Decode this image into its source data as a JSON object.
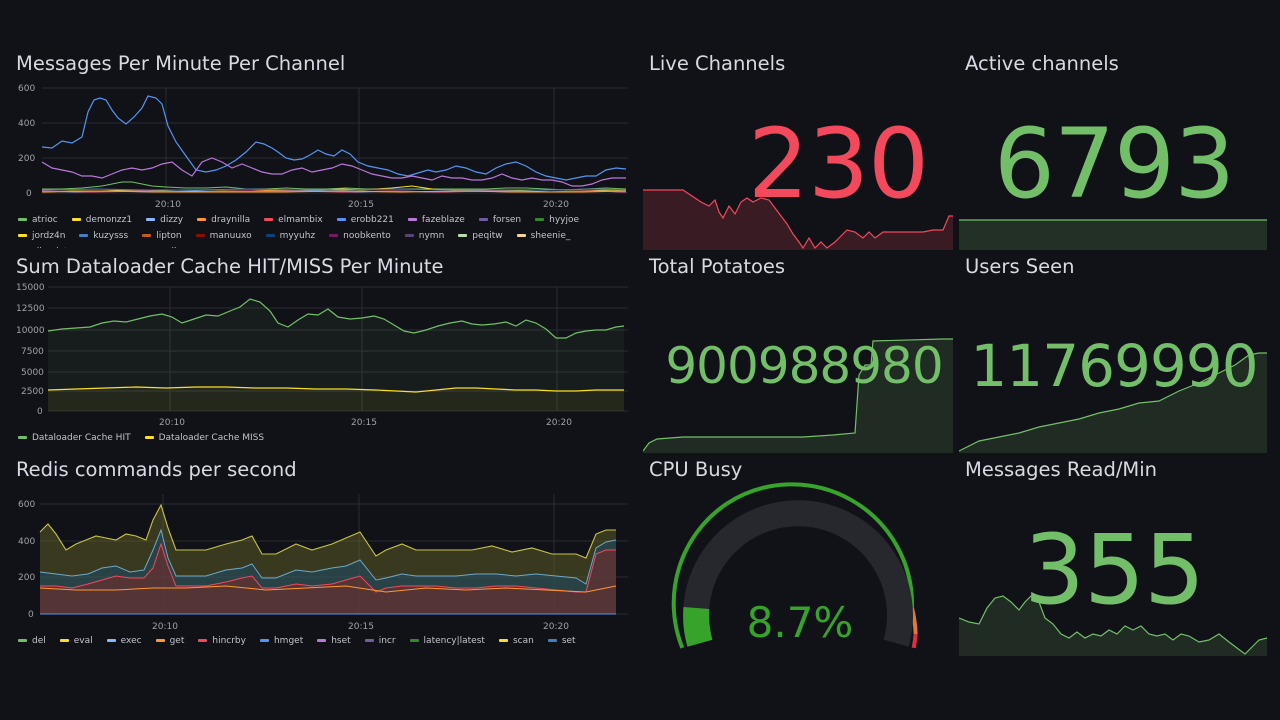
{
  "colors": {
    "background": "#111217",
    "green": "#73bf69",
    "red": "#f2495c",
    "gauge_green": "#37a32b",
    "gauge_orange": "#e07a2a",
    "gauge_red": "#e02f44"
  },
  "messages_panel": {
    "title": "Messages Per Minute Per Channel",
    "yticks": [
      "600",
      "400",
      "200",
      "0"
    ],
    "xticks": [
      "20:10",
      "20:15",
      "20:20"
    ],
    "legend": [
      {
        "name": "atrioc",
        "color": "#73bf69"
      },
      {
        "name": "demonzz1",
        "color": "#fade2a"
      },
      {
        "name": "dizzy",
        "color": "#8ab8ff"
      },
      {
        "name": "draynilla",
        "color": "#ff9830"
      },
      {
        "name": "elmambix",
        "color": "#f2495c"
      },
      {
        "name": "erobb221",
        "color": "#5794f2"
      },
      {
        "name": "fazeblaze",
        "color": "#b877d9"
      },
      {
        "name": "forsen",
        "color": "#705da0"
      },
      {
        "name": "hyyjoe",
        "color": "#37872d"
      },
      {
        "name": "jordz4n",
        "color": "#fade2a"
      },
      {
        "name": "kuzysss",
        "color": "#447ebc"
      },
      {
        "name": "lipton",
        "color": "#c15c17"
      },
      {
        "name": "manuuxo",
        "color": "#890f02"
      },
      {
        "name": "myyuhz",
        "color": "#0a437c"
      },
      {
        "name": "noobkento",
        "color": "#6d1f62"
      },
      {
        "name": "nymn",
        "color": "#584477"
      },
      {
        "name": "peqitw",
        "color": "#b7dbab"
      },
      {
        "name": "sheenie_",
        "color": "#f4d598"
      },
      {
        "name": "slimplyty",
        "color": "#70dbed"
      },
      {
        "name": "sunnys",
        "color": "#f9ba8f"
      },
      {
        "name": "valkyrae",
        "color": "#f29191"
      },
      {
        "name": "vonza",
        "color": "#82b5d8"
      },
      {
        "name": "xqc",
        "color": "#e5a8e2"
      }
    ]
  },
  "cache_panel": {
    "title": "Sum Dataloader Cache HIT/MISS Per Minute",
    "yticks": [
      "15000",
      "12500",
      "10000",
      "7500",
      "5000",
      "2500",
      "0"
    ],
    "xticks": [
      "20:10",
      "20:15",
      "20:20"
    ],
    "legend": [
      {
        "name": "Dataloader Cache HIT",
        "color": "#73bf69"
      },
      {
        "name": "Dataloader Cache MISS",
        "color": "#fade2a"
      }
    ]
  },
  "redis_panel": {
    "title": "Redis commands per second",
    "yticks": [
      "600",
      "400",
      "200",
      "0"
    ],
    "xticks": [
      "20:10",
      "20:15",
      "20:20"
    ],
    "legend": [
      {
        "name": "del",
        "color": "#73bf69"
      },
      {
        "name": "eval",
        "color": "#fade2a"
      },
      {
        "name": "exec",
        "color": "#8ab8ff"
      },
      {
        "name": "get",
        "color": "#ff9830"
      },
      {
        "name": "hincrby",
        "color": "#f2495c"
      },
      {
        "name": "hmget",
        "color": "#5794f2"
      },
      {
        "name": "hset",
        "color": "#b877d9"
      },
      {
        "name": "incr",
        "color": "#705da0"
      },
      {
        "name": "latency|latest",
        "color": "#37872d"
      },
      {
        "name": "scan",
        "color": "#fade2a"
      },
      {
        "name": "set",
        "color": "#447ebc"
      }
    ]
  },
  "live_channels": {
    "title": "Live Channels",
    "value": "230"
  },
  "active_channels": {
    "title": "Active channels",
    "value": "6793"
  },
  "total_potatoes": {
    "title": "Total Potatoes",
    "value": "900988980"
  },
  "users_seen": {
    "title": "Users Seen",
    "value": "11769990"
  },
  "cpu_busy": {
    "title": "CPU Busy",
    "value": "8.7%",
    "percent": 8.7
  },
  "messages_read": {
    "title": "Messages Read/Min",
    "value": "355"
  }
}
